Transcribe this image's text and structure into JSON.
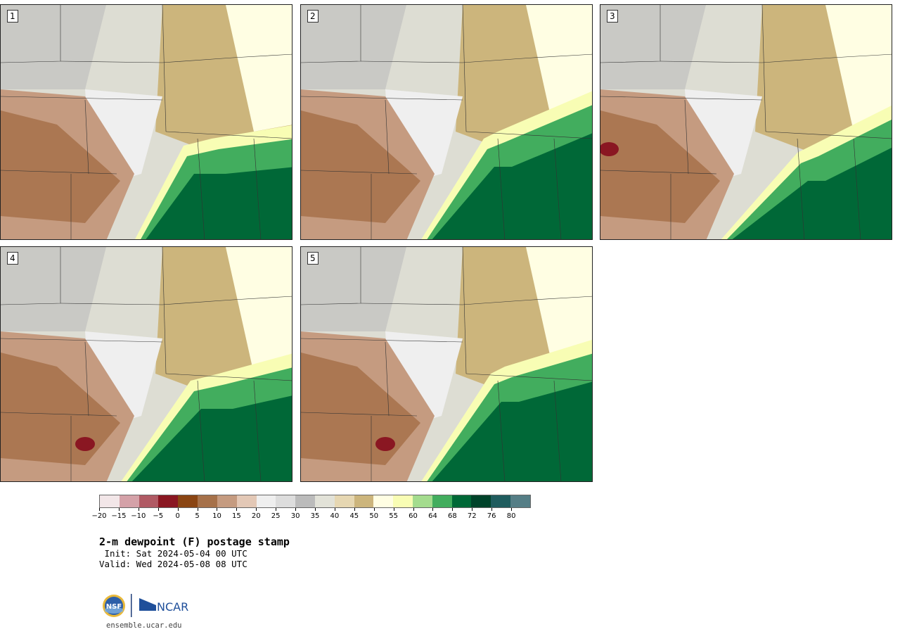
{
  "panels": [
    {
      "label": "1"
    },
    {
      "label": "2"
    },
    {
      "label": "3"
    },
    {
      "label": "4"
    },
    {
      "label": "5"
    }
  ],
  "colorbar": {
    "colors": [
      "#f2e6e8",
      "#d4a1a8",
      "#b05a64",
      "#8a1722",
      "#8a4513",
      "#a6714a",
      "#c59b80",
      "#e3c8b6",
      "#efefef",
      "#dddddd",
      "#bbbbbb",
      "#e2e2d8",
      "#e6d7b2",
      "#ccb57c",
      "#fffee3",
      "#f8fdb4",
      "#a4dc8e",
      "#42ad5e",
      "#006837",
      "#00432a",
      "#1f5c5e",
      "#557e86"
    ],
    "tick_labels": [
      "−20",
      "−15",
      "−10",
      "−5",
      "0",
      "5",
      "10",
      "15",
      "20",
      "25",
      "30",
      "35",
      "40",
      "45",
      "50",
      "55",
      "60",
      "64",
      "68",
      "72",
      "76",
      "80"
    ]
  },
  "title": "2-m dewpoint (F) postage stamp",
  "init_line": " Init: Sat 2024-05-04 00 UTC",
  "valid_line": "Valid: Wed 2024-05-08 08 UTC",
  "logos": {
    "nsf": "NSF",
    "ncar": "NCAR"
  },
  "site": "ensemble.ucar.edu"
}
